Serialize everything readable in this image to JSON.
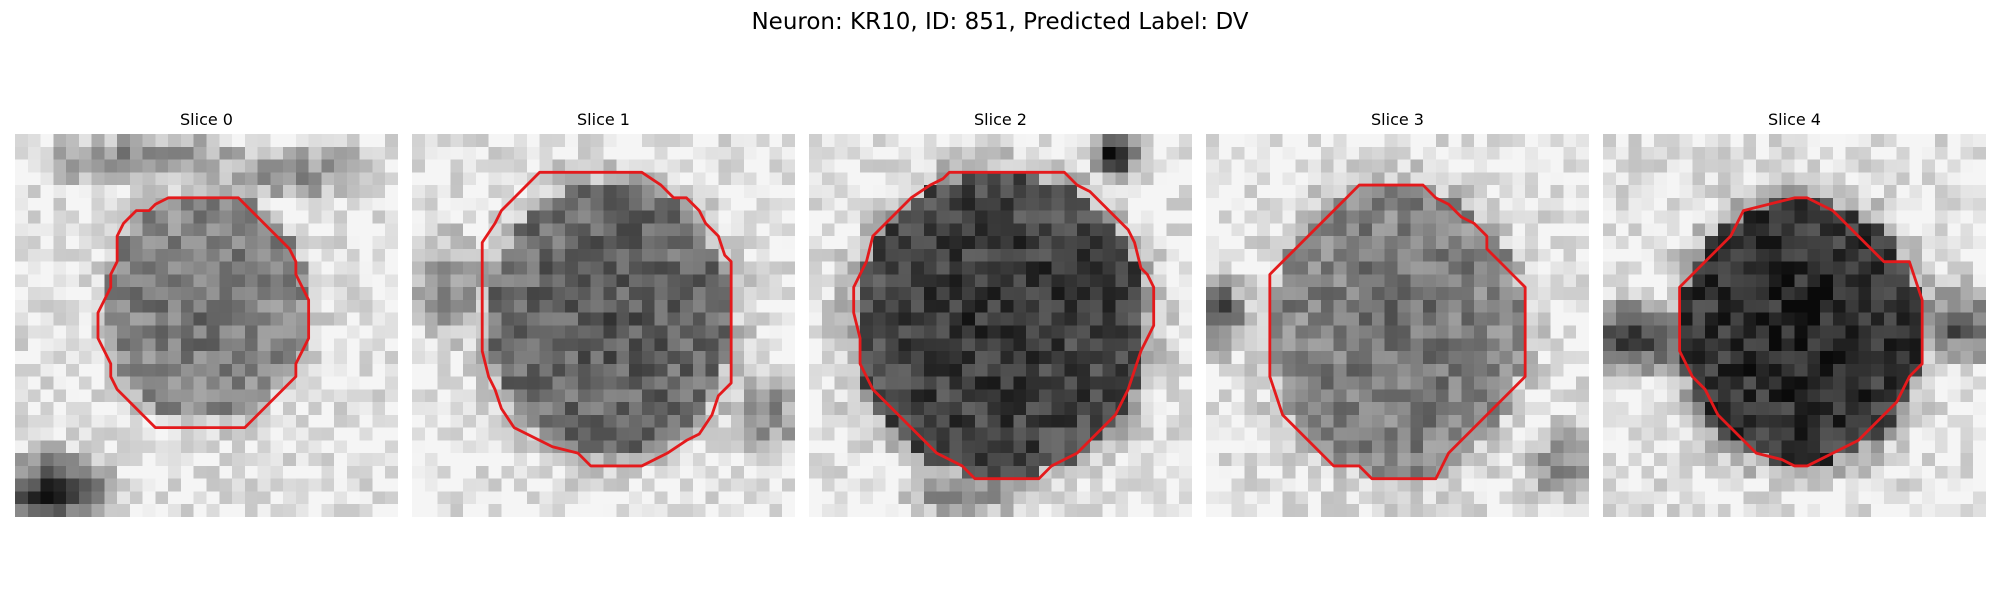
{
  "figure": {
    "title": "Neuron: KR10, ID: 851, Predicted Label: DV",
    "contour_color": "#e41a1c",
    "colormap": "gray"
  },
  "panels": [
    {
      "title": "Slice 0"
    },
    {
      "title": "Slice 1"
    },
    {
      "title": "Slice 2"
    },
    {
      "title": "Slice 3"
    },
    {
      "title": "Slice 4"
    }
  ]
}
